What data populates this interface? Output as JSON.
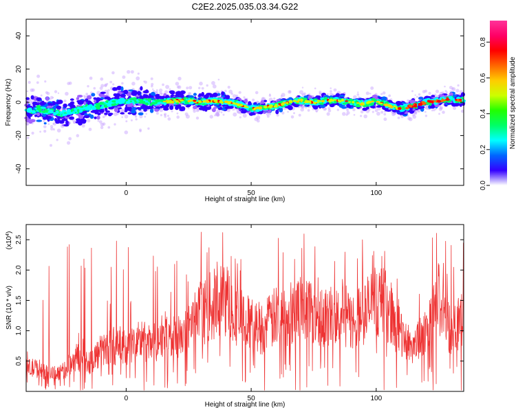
{
  "title": "C2E2.2025.035.03.34.G22",
  "chart_data": [
    {
      "type": "heatmap",
      "xlabel": "Height of straight line (km)",
      "ylabel": "Frequency (Hz)",
      "xlim": [
        -40,
        135
      ],
      "ylim": [
        -50,
        50
      ],
      "x_ticks": [
        "0",
        "50",
        "100"
      ],
      "y_ticks": [
        "40",
        "20",
        "0",
        "-20",
        "-40"
      ],
      "colorbar": {
        "label": "Normalized spectral amplitude",
        "range": [
          0.0,
          0.92
        ],
        "ticks": [
          "0.0",
          "0.2",
          "0.4",
          "0.6",
          "0.8"
        ],
        "colors": [
          "#ffffff",
          "#a060ff",
          "#3300ff",
          "#0066ff",
          "#00ffff",
          "#00ff66",
          "#22ff00",
          "#ccff00",
          "#ffcc00",
          "#ff6600",
          "#ff0000",
          "#ff0066",
          "#ff3399"
        ]
      },
      "ridge": [
        [
          -40,
          -5
        ],
        [
          -35,
          -4
        ],
        [
          -30,
          -6
        ],
        [
          -25,
          -7
        ],
        [
          -20,
          -5
        ],
        [
          -15,
          -3
        ],
        [
          -10,
          -2
        ],
        [
          -5,
          0
        ],
        [
          0,
          1
        ],
        [
          5,
          1
        ],
        [
          10,
          0
        ],
        [
          15,
          0
        ],
        [
          20,
          1
        ],
        [
          25,
          1
        ],
        [
          30,
          0
        ],
        [
          35,
          1
        ],
        [
          40,
          0
        ],
        [
          45,
          -1
        ],
        [
          50,
          -4
        ],
        [
          55,
          -3
        ],
        [
          60,
          -2
        ],
        [
          65,
          0
        ],
        [
          70,
          1
        ],
        [
          75,
          0
        ],
        [
          80,
          1
        ],
        [
          85,
          1
        ],
        [
          90,
          0
        ],
        [
          95,
          -1
        ],
        [
          100,
          1
        ],
        [
          105,
          -2
        ],
        [
          110,
          -4
        ],
        [
          115,
          -2
        ],
        [
          120,
          0
        ],
        [
          125,
          1
        ],
        [
          130,
          2
        ],
        [
          135,
          1
        ]
      ]
    },
    {
      "type": "line",
      "xlabel": "Height of straight line (km)",
      "ylabel": "SNR (10 * v/v)",
      "multiplier": "(x10",
      "multiplier_exp": "4",
      "multiplier_close": ")",
      "xlim": [
        -40,
        135
      ],
      "ylim": [
        0,
        2.75
      ],
      "x_ticks": [
        "0",
        "50",
        "100"
      ],
      "y_ticks": [
        "0.5",
        "1.0",
        "1.5",
        "2.0",
        "2.5"
      ],
      "color": "#ee3333",
      "envelope": [
        [
          -40,
          0.4
        ],
        [
          -35,
          0.4
        ],
        [
          -30,
          0.3
        ],
        [
          -25,
          0.35
        ],
        [
          -20,
          0.6
        ],
        [
          -15,
          0.5
        ],
        [
          -10,
          0.7
        ],
        [
          -5,
          0.8
        ],
        [
          0,
          0.7
        ],
        [
          5,
          0.9
        ],
        [
          10,
          0.8
        ],
        [
          15,
          1.0
        ],
        [
          20,
          0.9
        ],
        [
          25,
          1.1
        ],
        [
          30,
          1.35
        ],
        [
          35,
          1.5
        ],
        [
          40,
          1.6
        ],
        [
          45,
          1.3
        ],
        [
          50,
          1.15
        ],
        [
          55,
          1.1
        ],
        [
          60,
          1.3
        ],
        [
          65,
          1.35
        ],
        [
          70,
          1.45
        ],
        [
          75,
          1.45
        ],
        [
          80,
          1.25
        ],
        [
          85,
          1.45
        ],
        [
          90,
          1.2
        ],
        [
          95,
          1.35
        ],
        [
          100,
          1.6
        ],
        [
          105,
          1.45
        ],
        [
          110,
          0.95
        ],
        [
          115,
          0.8
        ],
        [
          120,
          1.0
        ],
        [
          125,
          1.6
        ],
        [
          130,
          1.05
        ],
        [
          135,
          1.4
        ]
      ]
    }
  ]
}
